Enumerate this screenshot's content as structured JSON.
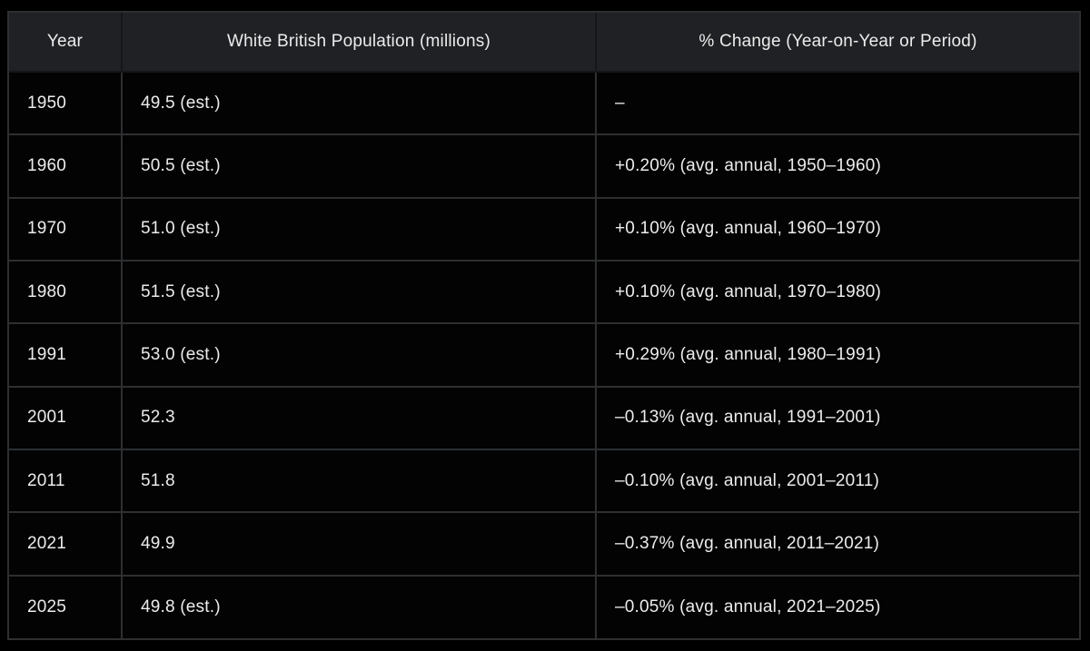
{
  "colors": {
    "page_bg": "#000000",
    "header_bg": "#1f2124",
    "row_bg": "#030303",
    "border": "#2d2f31",
    "header_divider": "#151619",
    "text": "#ececec"
  },
  "table": {
    "columns": [
      {
        "key": "year",
        "label": "Year"
      },
      {
        "key": "population",
        "label": "White British Population (millions)"
      },
      {
        "key": "pct-change",
        "label": "% Change (Year-on-Year or Period)"
      }
    ],
    "rows": [
      {
        "cells": [
          "1950",
          "49.5 (est.)",
          "–"
        ]
      },
      {
        "cells": [
          "1960",
          "50.5 (est.)",
          "+0.20% (avg. annual, 1950–1960)"
        ]
      },
      {
        "cells": [
          "1970",
          "51.0 (est.)",
          "+0.10% (avg. annual, 1960–1970)"
        ]
      },
      {
        "cells": [
          "1980",
          "51.5 (est.)",
          "+0.10% (avg. annual, 1970–1980)"
        ]
      },
      {
        "cells": [
          "1991",
          "53.0 (est.)",
          "+0.29% (avg. annual, 1980–1991)"
        ]
      },
      {
        "cells": [
          "2001",
          "52.3",
          "–0.13% (avg. annual, 1991–2001)"
        ]
      },
      {
        "cells": [
          "2011",
          "51.8",
          "–0.10% (avg. annual, 2001–2011)"
        ]
      },
      {
        "cells": [
          "2021",
          "49.9",
          "–0.37% (avg. annual, 2011–2021)"
        ]
      },
      {
        "cells": [
          "2025",
          "49.8 (est.)",
          "–0.05% (avg. annual, 2021–2025)"
        ]
      }
    ]
  },
  "chart_data": {
    "type": "table",
    "title": "",
    "columns": [
      "Year",
      "White British Population (millions)",
      "% Change (Year-on-Year or Period)"
    ],
    "x": [
      1950,
      1960,
      1970,
      1980,
      1991,
      2001,
      2011,
      2021,
      2025
    ],
    "series": [
      {
        "name": "White British Population (millions)",
        "values": [
          49.5,
          50.5,
          51.0,
          51.5,
          53.0,
          52.3,
          51.8,
          49.9,
          49.8
        ],
        "estimated_flags": [
          true,
          true,
          true,
          true,
          true,
          false,
          false,
          false,
          true
        ]
      },
      {
        "name": "% Change (avg. annual)",
        "values": [
          null,
          0.2,
          0.1,
          0.1,
          0.29,
          -0.13,
          -0.1,
          -0.37,
          -0.05
        ],
        "periods": [
          "–",
          "1950–1960",
          "1960–1970",
          "1970–1980",
          "1980–1991",
          "1991–2001",
          "2001–2011",
          "2011–2021",
          "2021–2025"
        ]
      }
    ]
  }
}
